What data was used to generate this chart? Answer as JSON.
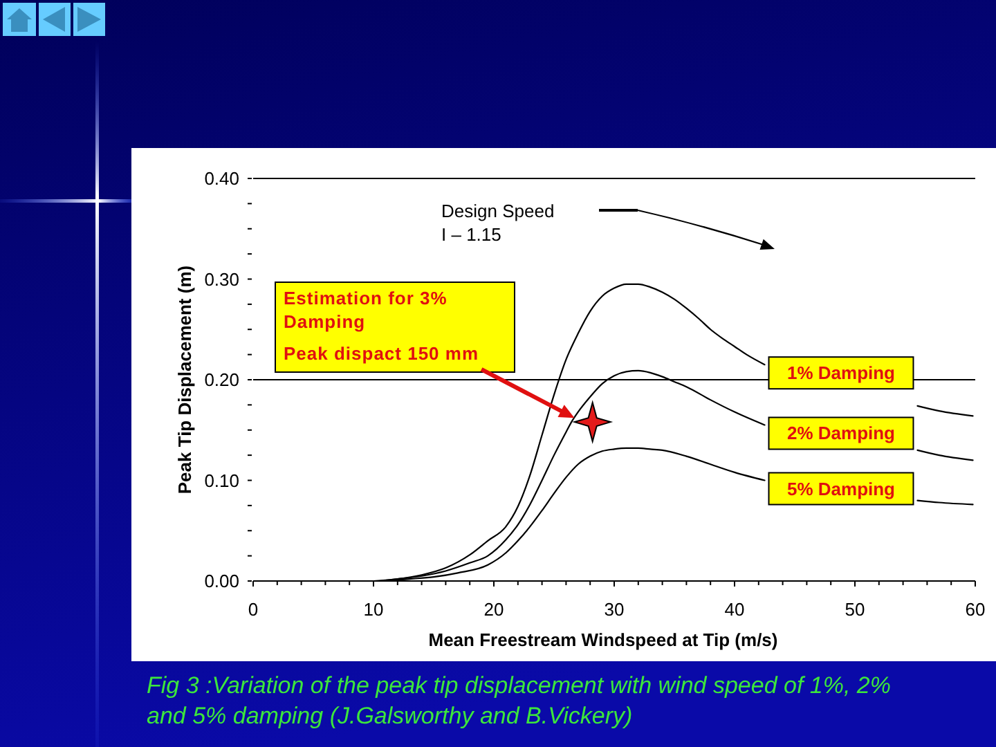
{
  "chart_data": {
    "type": "line",
    "xlabel": "Mean Freestream Windspeed at Tip (m/s)",
    "ylabel": "Peak Tip Displacement (m)",
    "line_style": "solid",
    "xlim": [
      0,
      60
    ],
    "ylim": [
      0,
      0.4
    ],
    "xticks": [
      0,
      {
        "value": 2,
        "label": null
      },
      {
        "value": 4,
        "label": null
      },
      {
        "value": 6,
        "label": null
      },
      {
        "value": 8,
        "label": null
      },
      10,
      {
        "value": 12,
        "label": null
      },
      {
        "value": 14,
        "label": null
      },
      {
        "value": 16,
        "label": null
      },
      {
        "value": 18,
        "label": null
      },
      20,
      {
        "value": 22,
        "label": null
      },
      {
        "value": 24,
        "label": null
      },
      {
        "value": 26,
        "label": null
      },
      {
        "value": 28,
        "label": null
      },
      30,
      {
        "value": 32,
        "label": null
      },
      {
        "value": 34,
        "label": null
      },
      {
        "value": 36,
        "label": null
      },
      {
        "value": 38,
        "label": null
      },
      40,
      {
        "value": 42,
        "label": null
      },
      {
        "value": 44,
        "label": null
      },
      {
        "value": 46,
        "label": null
      },
      {
        "value": 48,
        "label": null
      },
      50,
      {
        "value": 52,
        "label": null
      },
      {
        "value": 54,
        "label": null
      },
      {
        "value": 56,
        "label": null
      },
      {
        "value": 58,
        "label": null
      },
      60
    ],
    "yticks": [
      {
        "value": 0,
        "label": "0.00"
      },
      {
        "value": 0.025,
        "label": null
      },
      {
        "value": 0.05,
        "label": null
      },
      {
        "value": 0.075,
        "label": null
      },
      {
        "value": 0.1,
        "label": "0.10"
      },
      {
        "value": 0.125,
        "label": null
      },
      {
        "value": 0.15,
        "label": null
      },
      {
        "value": 0.175,
        "label": null
      },
      {
        "value": 0.2,
        "label": "0.20"
      },
      {
        "value": 0.225,
        "label": null
      },
      {
        "value": 0.25,
        "label": null
      },
      {
        "value": 0.275,
        "label": null
      },
      {
        "value": 0.3,
        "label": "0.30"
      },
      {
        "value": 0.325,
        "label": null
      },
      {
        "value": 0.35,
        "label": null
      },
      {
        "value": 0.375,
        "label": null
      },
      {
        "value": 0.4,
        "label": "0.40"
      }
    ],
    "ref_lines": [
      {
        "axis": "y",
        "value": 0.2,
        "color": "#000000"
      }
    ],
    "series": [
      {
        "name": "1% Damping",
        "color": "#000000",
        "x": [
          10,
          12,
          14,
          16,
          18,
          19.5,
          21,
          22,
          23,
          24,
          25,
          26,
          27,
          28,
          29,
          30,
          31,
          32,
          33,
          34,
          35,
          36,
          37,
          38,
          39,
          40,
          41,
          42.5,
          49,
          55.2,
          57,
          59.8
        ],
        "values": [
          0,
          0.002,
          0.006,
          0.013,
          0.026,
          0.04,
          0.054,
          0.074,
          0.105,
          0.145,
          0.185,
          0.22,
          0.246,
          0.268,
          0.283,
          0.291,
          0.295,
          0.295,
          0.292,
          0.287,
          0.28,
          0.271,
          0.261,
          0.25,
          0.241,
          0.233,
          0.225,
          0.215,
          null,
          0.174,
          0.169,
          0.164
        ]
      },
      {
        "name": "2% Damping",
        "color": "#000000",
        "x": [
          10.5,
          12,
          14,
          16,
          18,
          19.5,
          21,
          22,
          23,
          24,
          25,
          26,
          26.5,
          27,
          28,
          29,
          30,
          31,
          32,
          33,
          34,
          35,
          36,
          38,
          40,
          42.5,
          49,
          55.2,
          57,
          59.8
        ],
        "values": [
          0,
          0.002,
          0.005,
          0.01,
          0.018,
          0.025,
          0.041,
          0.056,
          0.076,
          0.1,
          0.125,
          0.148,
          0.159,
          0.168,
          0.183,
          0.196,
          0.204,
          0.208,
          0.209,
          0.207,
          0.203,
          0.198,
          0.193,
          0.18,
          0.168,
          0.155,
          null,
          0.13,
          0.125,
          0.12
        ]
      },
      {
        "name": "5% Damping",
        "color": "#000000",
        "x": [
          11,
          13,
          15,
          17,
          19.5,
          21,
          22,
          23,
          24,
          25,
          26,
          27,
          28,
          29,
          30,
          31,
          32,
          33,
          34,
          36,
          38,
          40,
          42.5,
          49,
          55.2,
          57,
          59.8
        ],
        "values": [
          0,
          0.002,
          0.004,
          0.008,
          0.016,
          0.028,
          0.04,
          0.054,
          0.07,
          0.087,
          0.103,
          0.116,
          0.124,
          0.129,
          0.131,
          0.132,
          0.132,
          0.131,
          0.13,
          0.124,
          0.116,
          0.108,
          0.1,
          null,
          0.08,
          0.078,
          0.076
        ]
      },
      {
        "type": "scatter",
        "color": "#e41b1b",
        "marker": "star",
        "x": [
          28.2
        ],
        "values": [
          0.158
        ]
      }
    ],
    "annotations": [
      "Design Speed\nI – 1.15",
      {
        "text": "Estimation for 3% Damping\nPeak dispact 150 mm",
        "x": 26.7,
        "y": 0.162
      },
      "Fig 3 :Variation of the peak tip displacement with wind speed of 1%, 2% and 5% damping (J.Galsworthy and B.Vickery)"
    ]
  }
}
